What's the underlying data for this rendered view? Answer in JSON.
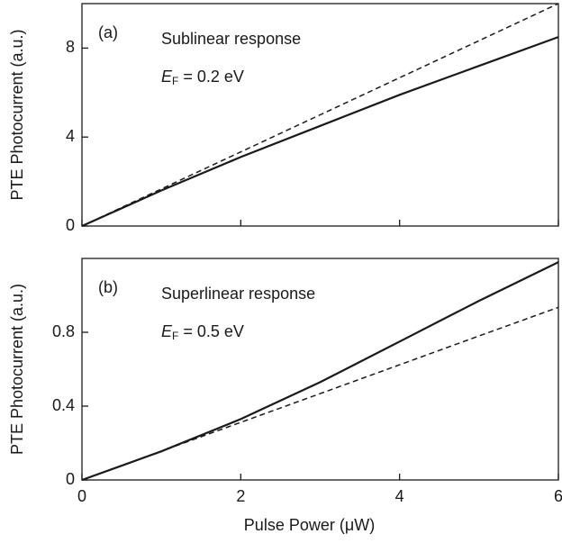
{
  "chart_data": [
    {
      "type": "line",
      "panel": "(a)",
      "ylabel": "PTE Photocurrent (a.u.)",
      "annotation": "Sublinear response",
      "fermi": {
        "symbol": "E",
        "subscript": "F",
        "text": " = 0.2 eV"
      },
      "x": [
        0,
        1,
        2,
        3,
        4,
        5,
        6
      ],
      "series": [
        {
          "style": "solid",
          "color": "#1a1a1a",
          "values": [
            0,
            1.6,
            3.1,
            4.5,
            5.9,
            7.2,
            8.5
          ]
        },
        {
          "style": "dashed",
          "color": "#1a1a1a",
          "values": [
            0,
            1.67,
            3.33,
            5,
            6.67,
            8.33,
            10
          ]
        }
      ],
      "xlim": [
        0,
        6
      ],
      "xticks": [
        0,
        2,
        4,
        6
      ],
      "xtick_labels": false,
      "ylim": [
        0,
        10
      ],
      "yticks": [
        0,
        4,
        8
      ]
    },
    {
      "type": "line",
      "panel": "(b)",
      "ylabel": "PTE Photocurrent (a.u.)",
      "xlabel": "Pulse Power (μW)",
      "annotation": "Superlinear response",
      "fermi": {
        "symbol": "E",
        "subscript": "F",
        "text": " = 0.5 eV"
      },
      "x": [
        0,
        1,
        2,
        3,
        4,
        5,
        6
      ],
      "series": [
        {
          "style": "solid",
          "color": "#1a1a1a",
          "values": [
            0,
            0.155,
            0.33,
            0.53,
            0.75,
            0.97,
            1.18
          ]
        },
        {
          "style": "dashed",
          "color": "#1a1a1a",
          "values": [
            0,
            0.156,
            0.312,
            0.468,
            0.624,
            0.78,
            0.935
          ]
        }
      ],
      "xlim": [
        0,
        6
      ],
      "xticks": [
        0,
        2,
        4,
        6
      ],
      "xtick_labels": true,
      "ylim": [
        0,
        1.2
      ],
      "yticks": [
        0,
        0.4,
        0.8
      ]
    }
  ]
}
